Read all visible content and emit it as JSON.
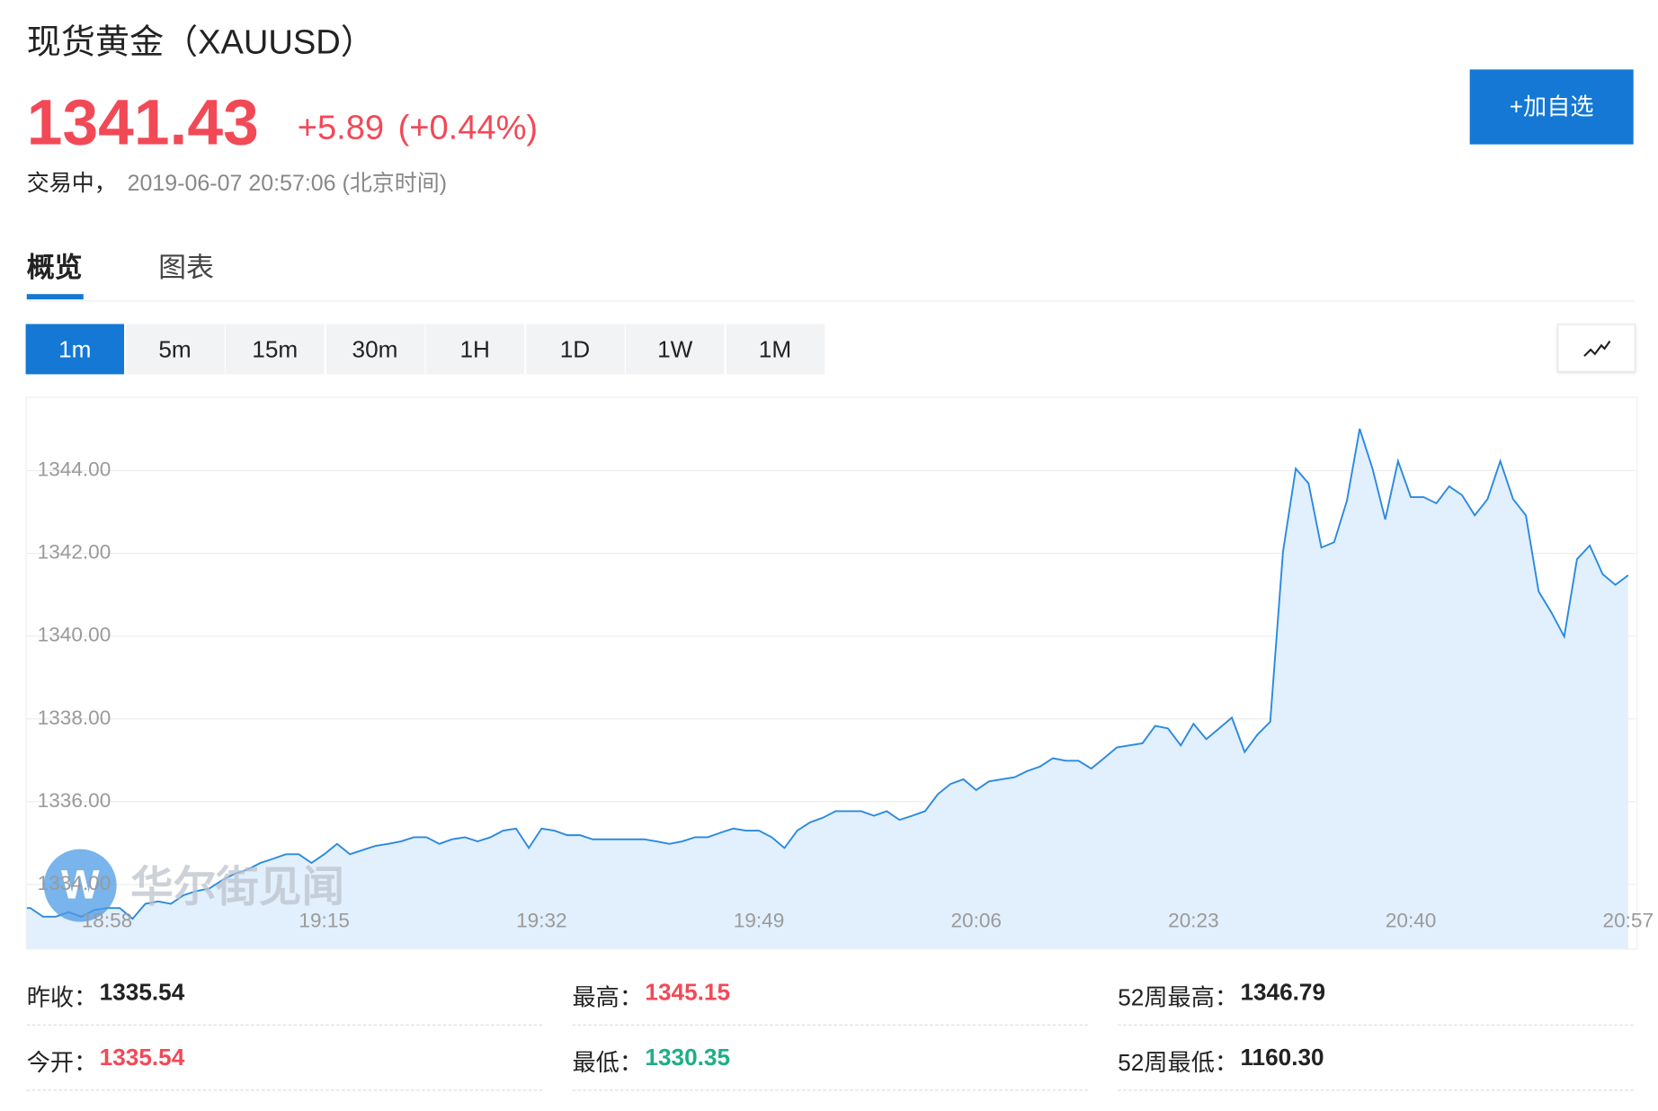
{
  "header": {
    "title": "现货黄金（XAUUSD）",
    "price": "1341.43",
    "change": "+5.89",
    "change_pct": "(+0.44%)",
    "status": "交易中，",
    "time": "2019-06-07 20:57:06 (北京时间)",
    "button": "+加自选"
  },
  "tabs": [
    "概览",
    "图表"
  ],
  "periods": [
    "1m",
    "5m",
    "15m",
    "30m",
    "1H",
    "1D",
    "1W",
    "1M"
  ],
  "watermark": "华尔街见闻",
  "chart_data": {
    "type": "line",
    "color": "#2a8ae0",
    "fill": "#e2effc",
    "grid": true,
    "x": [
      "18:52",
      "18:53",
      "18:54",
      "18:55",
      "18:56",
      "18:57",
      "18:58",
      "18:59",
      "19:00",
      "19:01",
      "19:02",
      "19:03",
      "19:04",
      "19:05",
      "19:06",
      "19:07",
      "19:08",
      "19:09",
      "19:10",
      "19:11",
      "19:12",
      "19:13",
      "19:14",
      "19:15",
      "19:16",
      "19:17",
      "19:18",
      "19:19",
      "19:20",
      "19:21",
      "19:22",
      "19:23",
      "19:24",
      "19:25",
      "19:26",
      "19:27",
      "19:28",
      "19:29",
      "19:30",
      "19:31",
      "19:32",
      "19:33",
      "19:34",
      "19:35",
      "19:36",
      "19:37",
      "19:38",
      "19:39",
      "19:40",
      "19:41",
      "19:42",
      "19:43",
      "19:44",
      "19:45",
      "19:46",
      "19:47",
      "19:48",
      "19:49",
      "19:50",
      "19:51",
      "19:52",
      "19:53",
      "19:54",
      "19:55",
      "19:56",
      "19:57",
      "19:58",
      "19:59",
      "20:00",
      "20:01",
      "20:02",
      "20:03",
      "20:04",
      "20:05",
      "20:06",
      "20:07",
      "20:08",
      "20:09",
      "20:10",
      "20:11",
      "20:12",
      "20:13",
      "20:14",
      "20:15",
      "20:16",
      "20:17",
      "20:18",
      "20:19",
      "20:20",
      "20:21",
      "20:22",
      "20:23",
      "20:24",
      "20:25",
      "20:26",
      "20:27",
      "20:28",
      "20:29",
      "20:30",
      "20:31",
      "20:32",
      "20:33",
      "20:34",
      "20:35",
      "20:36",
      "20:37",
      "20:38",
      "20:39",
      "20:40",
      "20:41",
      "20:42",
      "20:43",
      "20:44",
      "20:45",
      "20:46",
      "20:47",
      "20:48",
      "20:49",
      "20:50",
      "20:51",
      "20:52",
      "20:53",
      "20:54",
      "20:55",
      "20:56",
      "20:57"
    ],
    "values": [
      1333.43,
      1333.22,
      1333.22,
      1333.33,
      1333.22,
      1333.38,
      1333.43,
      1333.43,
      1333.17,
      1333.53,
      1333.59,
      1333.53,
      1333.74,
      1333.84,
      1333.9,
      1334.1,
      1334.26,
      1334.36,
      1334.52,
      1334.62,
      1334.73,
      1334.73,
      1334.52,
      1334.73,
      1334.98,
      1334.73,
      1334.83,
      1334.93,
      1334.98,
      1335.04,
      1335.14,
      1335.14,
      1334.98,
      1335.09,
      1335.14,
      1335.04,
      1335.14,
      1335.3,
      1335.35,
      1334.88,
      1335.35,
      1335.3,
      1335.19,
      1335.19,
      1335.09,
      1335.09,
      1335.09,
      1335.09,
      1335.09,
      1335.04,
      1334.98,
      1335.04,
      1335.14,
      1335.14,
      1335.25,
      1335.35,
      1335.3,
      1335.3,
      1335.14,
      1334.88,
      1335.3,
      1335.5,
      1335.61,
      1335.77,
      1335.77,
      1335.77,
      1335.66,
      1335.77,
      1335.56,
      1335.66,
      1335.77,
      1336.18,
      1336.43,
      1336.54,
      1336.28,
      1336.49,
      1336.54,
      1336.59,
      1336.74,
      1336.85,
      1337.05,
      1336.99,
      1336.99,
      1336.8,
      1337.05,
      1337.31,
      1337.36,
      1337.41,
      1337.83,
      1337.77,
      1337.36,
      1337.88,
      1337.51,
      1337.77,
      1338.03,
      1337.2,
      1337.62,
      1337.93,
      1342.04,
      1344.05,
      1343.69,
      1342.14,
      1342.27,
      1343.27,
      1345.01,
      1344.05,
      1342.82,
      1344.23,
      1343.36,
      1343.36,
      1343.21,
      1343.62,
      1343.41,
      1342.92,
      1343.31,
      1344.23,
      1343.31,
      1342.92,
      1341.08,
      1340.57,
      1339.99,
      1341.86,
      1342.19,
      1341.5,
      1341.24,
      1341.47
    ],
    "ylim": [
      1332.45,
      1345.76
    ],
    "yticks": [
      {
        "value": 1334,
        "label": "1334.00"
      },
      {
        "value": 1336,
        "label": "1336.00"
      },
      {
        "value": 1338,
        "label": "1338.00"
      },
      {
        "value": 1340,
        "label": "1340.00"
      },
      {
        "value": 1342,
        "label": "1342.00"
      },
      {
        "value": 1344,
        "label": "1344.00"
      }
    ],
    "xticks": [
      "18:58",
      "19:15",
      "19:32",
      "19:49",
      "20:06",
      "20:23",
      "20:40",
      "20:57"
    ]
  },
  "stats": [
    {
      "label": "昨收：",
      "value": "1335.54",
      "color": "#222222"
    },
    {
      "label": "最高：",
      "value": "1345.15",
      "color": "#f24957"
    },
    {
      "label": "52周最高：",
      "value": "1346.79",
      "color": "#222222"
    },
    {
      "label": "今开：",
      "value": "1335.54",
      "color": "#f24957"
    },
    {
      "label": "最低：",
      "value": "1330.35",
      "color": "#1fae87"
    },
    {
      "label": "52周最低：",
      "value": "1160.30",
      "color": "#222222"
    }
  ]
}
